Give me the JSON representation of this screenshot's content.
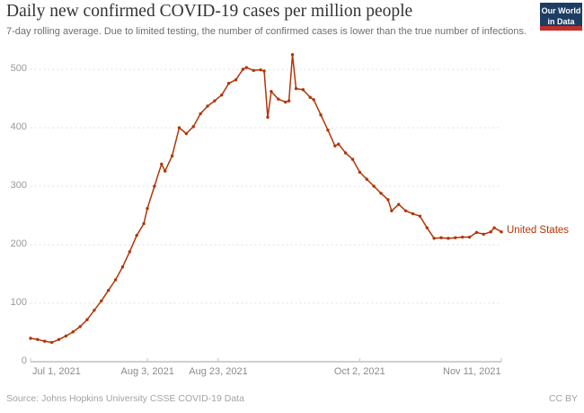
{
  "header": {
    "title": "Daily new confirmed COVID-19 cases per million people",
    "subtitle": "7-day rolling average. Due to limited testing, the number of confirmed cases is lower than the true number of infections.",
    "logo": {
      "line1": "Our World",
      "line2": "in Data",
      "bg_color": "#1d3d63",
      "bar_color": "#c32e27"
    }
  },
  "footer": {
    "source": "Source: Johns Hopkins University CSSE COVID-19 Data",
    "license": "CC BY"
  },
  "chart_data": {
    "type": "line",
    "title": "Daily new confirmed COVID-19 cases per million people",
    "xlabel": "",
    "ylabel": "",
    "grid": "horizontal-dotted",
    "legend_position": "end-of-line",
    "ylim": [
      0,
      500
    ],
    "xlim_days": [
      0,
      133
    ],
    "y_ticks": [
      0,
      100,
      200,
      300,
      400,
      500
    ],
    "x_ticks": [
      {
        "day": 0,
        "label": "Jul 1, 2021",
        "align": "start"
      },
      {
        "day": 33,
        "label": "Aug 3, 2021",
        "align": "middle"
      },
      {
        "day": 53,
        "label": "Aug 23, 2021",
        "align": "middle"
      },
      {
        "day": 93,
        "label": "Oct 2, 2021",
        "align": "middle"
      },
      {
        "day": 133,
        "label": "Nov 11, 2021",
        "align": "end"
      }
    ],
    "series": [
      {
        "name": "United States",
        "color": "#b13507",
        "points_day_value": [
          [
            0,
            40
          ],
          [
            2,
            38
          ],
          [
            4,
            35
          ],
          [
            6,
            33
          ],
          [
            8,
            38
          ],
          [
            10,
            44
          ],
          [
            12,
            51
          ],
          [
            14,
            60
          ],
          [
            16,
            72
          ],
          [
            18,
            88
          ],
          [
            20,
            104
          ],
          [
            22,
            122
          ],
          [
            24,
            140
          ],
          [
            26,
            162
          ],
          [
            28,
            188
          ],
          [
            30,
            216
          ],
          [
            32,
            236
          ],
          [
            33,
            262
          ],
          [
            35,
            300
          ],
          [
            37,
            338
          ],
          [
            38,
            326
          ],
          [
            40,
            352
          ],
          [
            42,
            400
          ],
          [
            44,
            390
          ],
          [
            46,
            402
          ],
          [
            48,
            424
          ],
          [
            50,
            437
          ],
          [
            52,
            446
          ],
          [
            54,
            456
          ],
          [
            56,
            476
          ],
          [
            58,
            482
          ],
          [
            60,
            500
          ],
          [
            61,
            503
          ],
          [
            63,
            498
          ],
          [
            65,
            499
          ],
          [
            66,
            497
          ],
          [
            67,
            418
          ],
          [
            68,
            462
          ],
          [
            70,
            449
          ],
          [
            72,
            444
          ],
          [
            73,
            446
          ],
          [
            74,
            525
          ],
          [
            75,
            467
          ],
          [
            77,
            465
          ],
          [
            79,
            452
          ],
          [
            80,
            448
          ],
          [
            82,
            422
          ],
          [
            84,
            396
          ],
          [
            86,
            369
          ],
          [
            87,
            372
          ],
          [
            89,
            357
          ],
          [
            91,
            346
          ],
          [
            93,
            324
          ],
          [
            95,
            312
          ],
          [
            97,
            300
          ],
          [
            99,
            288
          ],
          [
            101,
            277
          ],
          [
            102,
            258
          ],
          [
            104,
            269
          ],
          [
            106,
            258
          ],
          [
            108,
            253
          ],
          [
            110,
            249
          ],
          [
            112,
            229
          ],
          [
            114,
            211
          ],
          [
            116,
            212
          ],
          [
            118,
            211
          ],
          [
            120,
            212
          ],
          [
            122,
            213
          ],
          [
            124,
            213
          ],
          [
            126,
            221
          ],
          [
            128,
            218
          ],
          [
            130,
            222
          ],
          [
            131,
            229
          ],
          [
            133,
            222
          ]
        ]
      }
    ]
  },
  "colors": {
    "grid": "#dcdcdc",
    "axis": "#a0a0a0",
    "tick_text": "#999999"
  }
}
